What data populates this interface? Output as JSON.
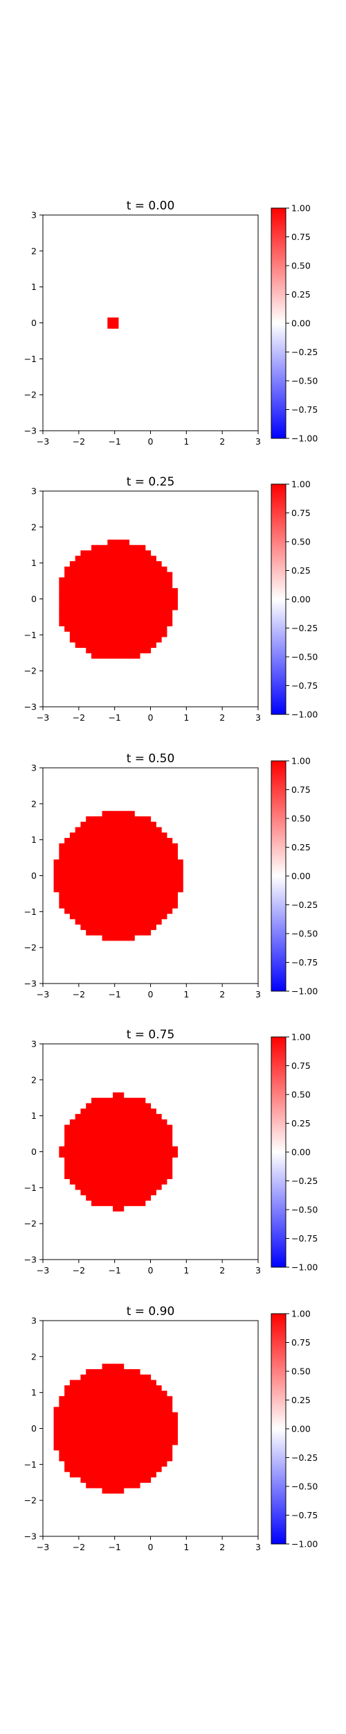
{
  "chart_data": [
    {
      "type": "heatmap",
      "title": "t = 0.00",
      "xlim": [
        -3,
        3
      ],
      "ylim": [
        -3,
        3
      ],
      "xticks": [
        -3,
        -2,
        -1,
        0,
        1,
        2,
        3
      ],
      "yticks": [
        -3,
        -2,
        -1,
        0,
        1,
        2,
        3
      ],
      "shape": "square",
      "center": [
        -1.0,
        0.0
      ],
      "half_size": 0.15,
      "value": 1.0,
      "colorbar": {
        "min": -1.0,
        "max": 1.0,
        "colormap": "bwr",
        "ticks": [
          "1.00",
          "0.75",
          "0.50",
          "0.25",
          "0.00",
          "−0.25",
          "−0.50",
          "−0.75",
          "−1.00"
        ]
      }
    },
    {
      "type": "heatmap",
      "title": "t = 0.25",
      "xlim": [
        -3,
        3
      ],
      "ylim": [
        -3,
        3
      ],
      "xticks": [
        -3,
        -2,
        -1,
        0,
        1,
        2,
        3
      ],
      "yticks": [
        -3,
        -2,
        -1,
        0,
        1,
        2,
        3
      ],
      "shape": "disk",
      "center": [
        -0.95,
        -0.05
      ],
      "radius": 1.65,
      "value": 1.0,
      "colorbar": {
        "min": -1.0,
        "max": 1.0,
        "colormap": "bwr",
        "ticks": [
          "1.00",
          "0.75",
          "0.50",
          "0.25",
          "0.00",
          "−0.25",
          "−0.50",
          "−0.75",
          "−1.00"
        ]
      }
    },
    {
      "type": "heatmap",
      "title": "t = 0.50",
      "xlim": [
        -3,
        3
      ],
      "ylim": [
        -3,
        3
      ],
      "xticks": [
        -3,
        -2,
        -1,
        0,
        1,
        2,
        3
      ],
      "yticks": [
        -3,
        -2,
        -1,
        0,
        1,
        2,
        3
      ],
      "shape": "disk",
      "center": [
        -0.9,
        0.0
      ],
      "radius": 1.8,
      "value": 1.0,
      "colorbar": {
        "min": -1.0,
        "max": 1.0,
        "colormap": "bwr",
        "ticks": [
          "1.00",
          "0.75",
          "0.50",
          "0.25",
          "0.00",
          "−0.25",
          "−0.50",
          "−0.75",
          "−1.00"
        ]
      }
    },
    {
      "type": "heatmap",
      "title": "t = 0.75",
      "xlim": [
        -3,
        3
      ],
      "ylim": [
        -3,
        3
      ],
      "xticks": [
        -3,
        -2,
        -1,
        0,
        1,
        2,
        3
      ],
      "yticks": [
        -3,
        -2,
        -1,
        0,
        1,
        2,
        3
      ],
      "shape": "disk",
      "center": [
        -0.9,
        0.0
      ],
      "radius": 1.58,
      "value": 1.0,
      "colorbar": {
        "min": -1.0,
        "max": 1.0,
        "colormap": "bwr",
        "ticks": [
          "1.00",
          "0.75",
          "0.50",
          "0.25",
          "0.00",
          "−0.25",
          "−0.50",
          "−0.75",
          "−1.00"
        ]
      }
    },
    {
      "type": "heatmap",
      "title": "t = 0.90",
      "xlim": [
        -3,
        3
      ],
      "ylim": [
        -3,
        3
      ],
      "xticks": [
        -3,
        -2,
        -1,
        0,
        1,
        2,
        3
      ],
      "yticks": [
        -3,
        -2,
        -1,
        0,
        1,
        2,
        3
      ],
      "shape": "disk",
      "center": [
        -1.0,
        0.0
      ],
      "radius": 1.75,
      "value": 1.0,
      "colorbar": {
        "min": -1.0,
        "max": 1.0,
        "colormap": "bwr",
        "ticks": [
          "1.00",
          "0.75",
          "0.50",
          "0.25",
          "0.00",
          "−0.25",
          "−0.50",
          "−0.75",
          "−1.00"
        ]
      }
    }
  ],
  "colors": {
    "positive": "#ff0000",
    "zero": "#ffffff",
    "negative": "#0000ff",
    "axis": "#000000"
  }
}
